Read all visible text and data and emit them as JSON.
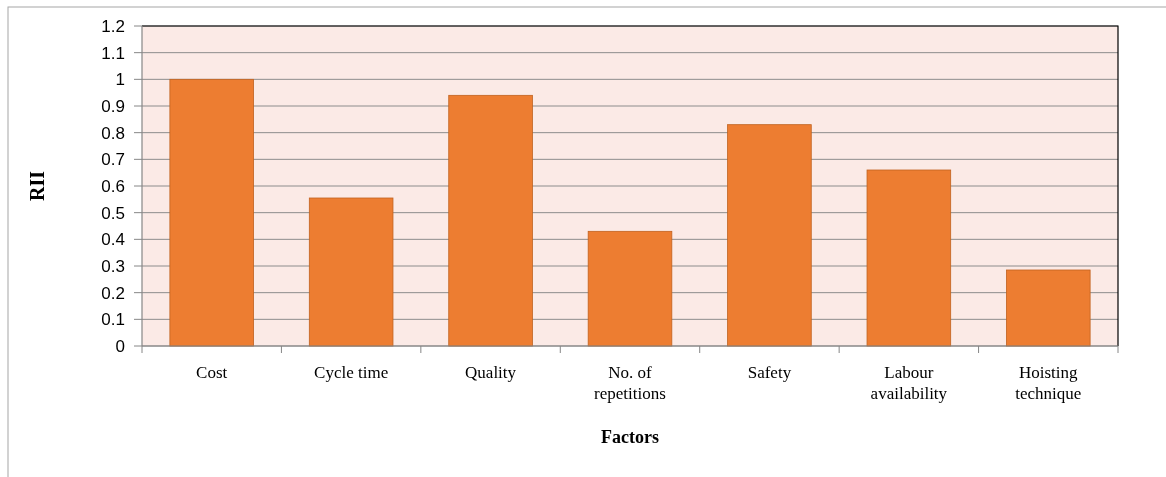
{
  "chart_data": {
    "type": "bar",
    "xlabel": "Factors",
    "ylabel": "RII",
    "categories": [
      "Cost",
      "Cycle time",
      "Quality",
      "No. of repetitions",
      "Safety",
      "Labour availability",
      "Hoisting technique"
    ],
    "values": [
      1.0,
      0.555,
      0.94,
      0.43,
      0.83,
      0.66,
      0.285
    ],
    "color": "#ed7d31",
    "ylim": [
      0,
      1.2
    ],
    "yticks": [
      0,
      0.1,
      0.2,
      0.3,
      0.4,
      0.5,
      0.6,
      0.7,
      0.8,
      0.9,
      1,
      1.1,
      1.2
    ],
    "grid": "y"
  }
}
